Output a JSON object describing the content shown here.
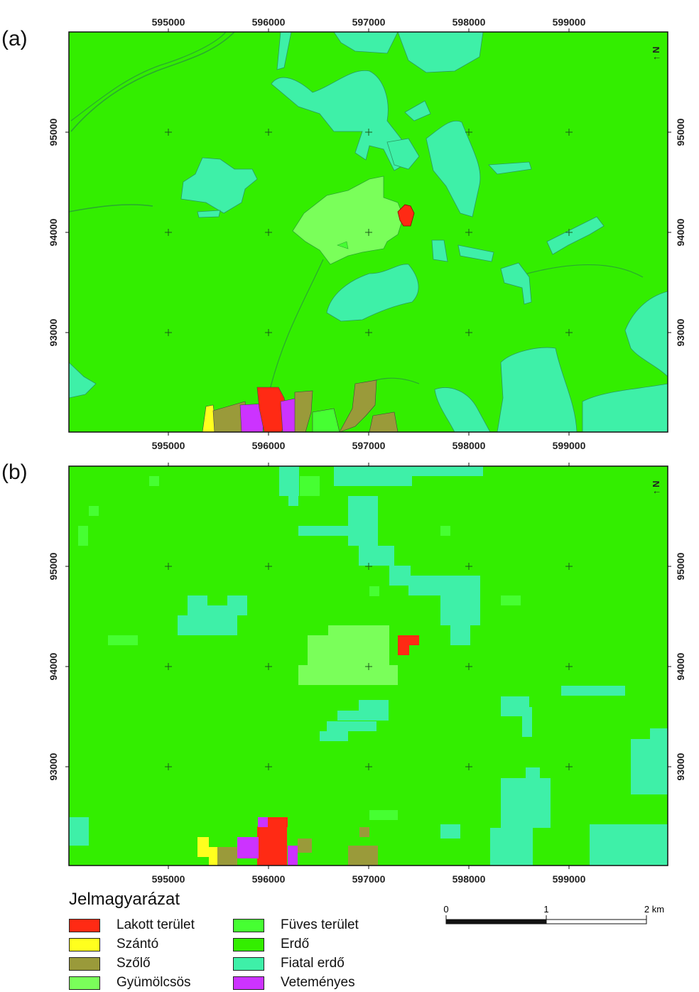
{
  "panels": [
    {
      "label": "(a)",
      "kind": "vector"
    },
    {
      "label": "(b)",
      "kind": "raster"
    }
  ],
  "axes": {
    "x_ticks": [
      "595000",
      "596000",
      "597000",
      "598000",
      "599000"
    ],
    "y_ticks": [
      "95000",
      "94000",
      "93000"
    ]
  },
  "north_arrow": "↑ N",
  "legend": {
    "title": "Jelmagyarázat",
    "items": [
      {
        "label": "Lakott terület",
        "color": "#ff2a14"
      },
      {
        "label": "Szántó",
        "color": "#ffff1e"
      },
      {
        "label": "Szőlő",
        "color": "#9a9a3a"
      },
      {
        "label": "Gyümölcsös",
        "color": "#7aff5a"
      },
      {
        "label": "Füves terület",
        "color": "#46ff32"
      },
      {
        "label": "Erdő",
        "color": "#33ee00"
      },
      {
        "label": "Fiatal erdő",
        "color": "#3ef0a8"
      },
      {
        "label": "Veteményes",
        "color": "#cc33ff"
      }
    ]
  },
  "scale": {
    "labels": [
      "0",
      "1",
      "2 km"
    ]
  }
}
